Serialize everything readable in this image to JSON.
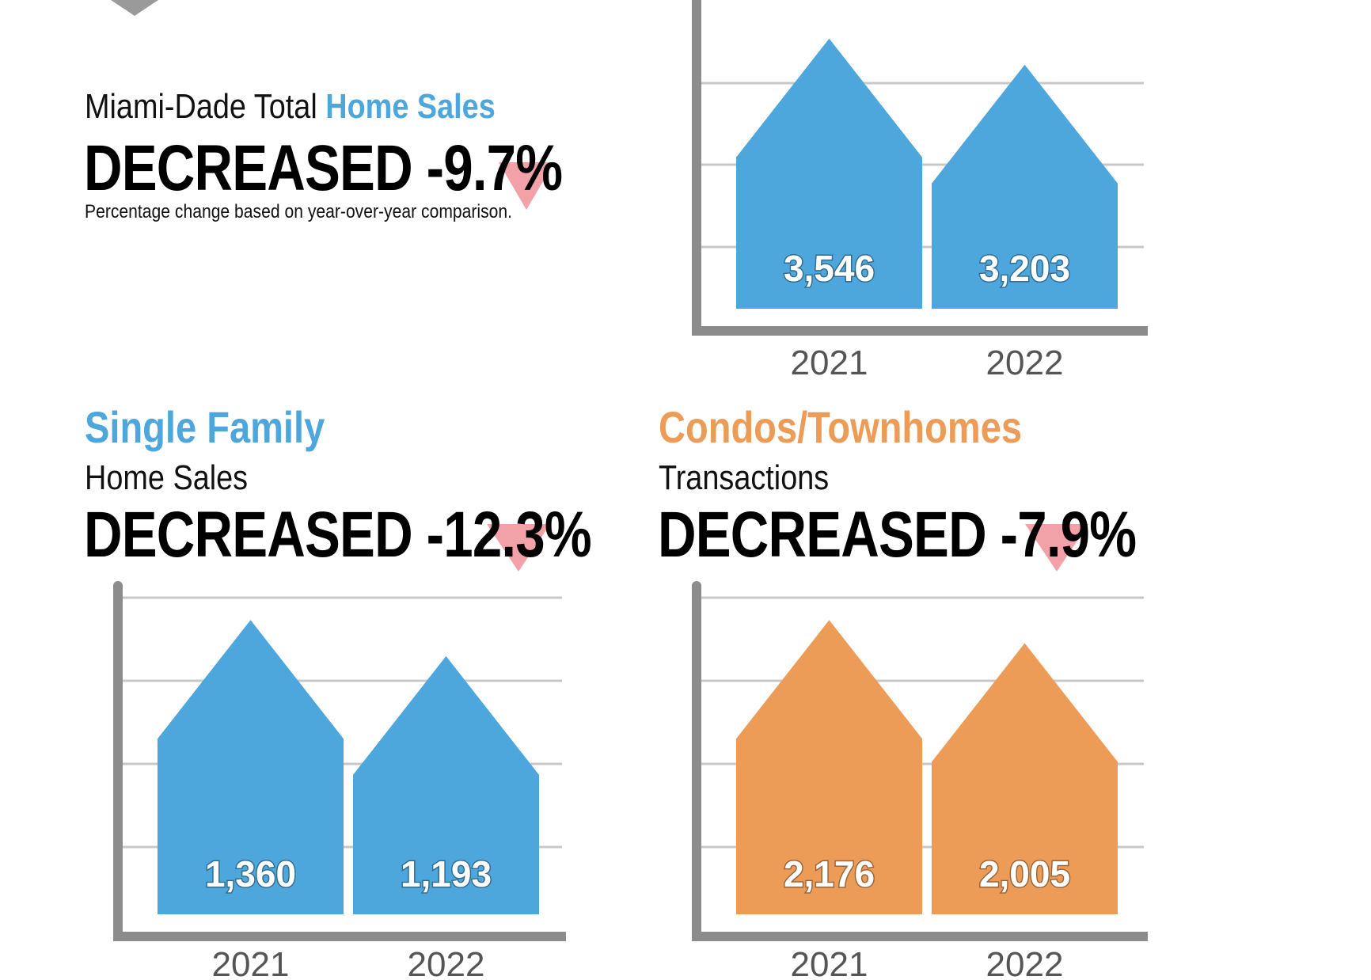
{
  "total": {
    "label_prefix": "Miami-Dade Total ",
    "label_highlight": "Home Sales",
    "headline": "DECREASED -9.7%",
    "note": "Percentage change based on year-over-year comparison."
  },
  "single_family": {
    "title": "Single Family",
    "subtitle": "Home Sales",
    "headline": "DECREASED -12.3%"
  },
  "condos": {
    "title": "Condos/Townhomes",
    "subtitle": "Transactions",
    "headline": "DECREASED -7.9%"
  },
  "colors": {
    "blue": "#4da6dc",
    "orange": "#ec9c56",
    "axis": "#8c8c8c",
    "grid": "#c8c8c8",
    "arrow": "#f08a94"
  },
  "chart_data": [
    {
      "type": "bar",
      "title": "Miami-Dade Total Home Sales",
      "categories": [
        "2021",
        "2022"
      ],
      "values": [
        3546,
        3203
      ],
      "value_labels": [
        "3,546",
        "3,203"
      ],
      "color": "#4da6dc",
      "grid": true,
      "ylim": [
        0,
        4000
      ]
    },
    {
      "type": "bar",
      "title": "Single Family Home Sales",
      "categories": [
        "2021",
        "2022"
      ],
      "values": [
        1360,
        1193
      ],
      "value_labels": [
        "1,360",
        "1,193"
      ],
      "color": "#4da6dc",
      "grid": true,
      "ylim": [
        0,
        1500
      ]
    },
    {
      "type": "bar",
      "title": "Condos/Townhomes Transactions",
      "categories": [
        "2021",
        "2022"
      ],
      "values": [
        2176,
        2005
      ],
      "value_labels": [
        "2,176",
        "2,005"
      ],
      "color": "#ec9c56",
      "grid": true,
      "ylim": [
        0,
        2400
      ]
    }
  ]
}
